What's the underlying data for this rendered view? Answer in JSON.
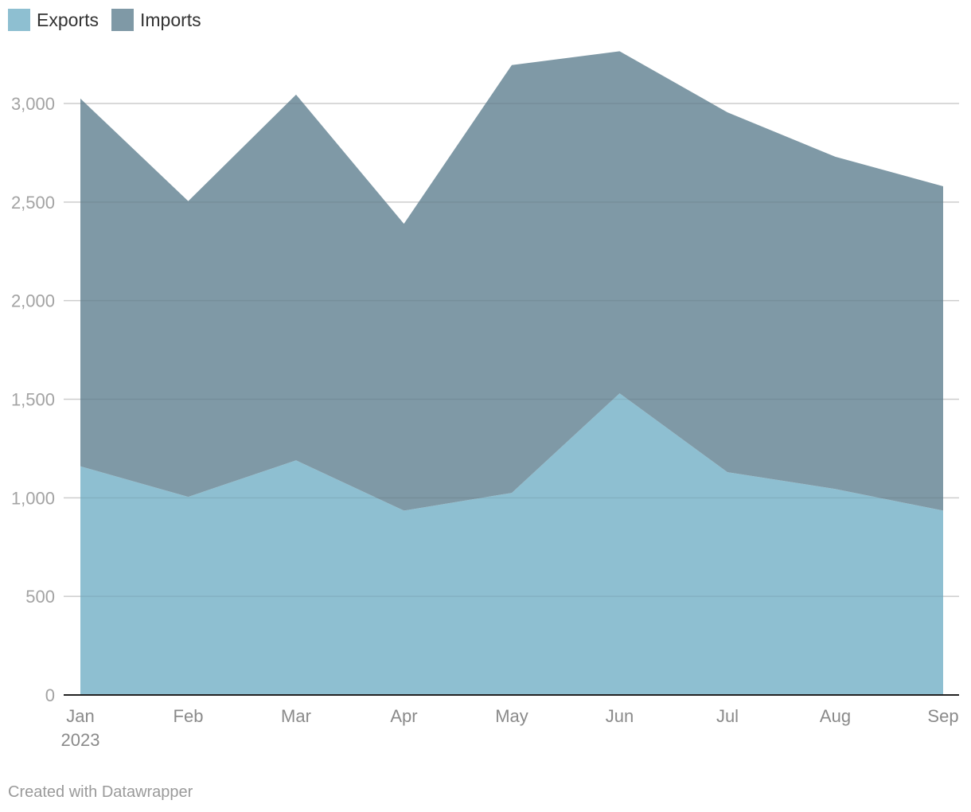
{
  "chart_data": {
    "type": "area",
    "stacked": true,
    "categories": [
      "Jan",
      "Feb",
      "Mar",
      "Apr",
      "May",
      "Jun",
      "Jul",
      "Aug",
      "Sep"
    ],
    "first_category_sublabel": "2023",
    "series": [
      {
        "name": "Exports",
        "color": "#8ebfd1",
        "values": [
          1160,
          1005,
          1190,
          935,
          1025,
          1530,
          1130,
          1045,
          935
        ]
      },
      {
        "name": "Imports",
        "color": "#7f99a6",
        "values": [
          1865,
          1500,
          1855,
          1455,
          2170,
          1735,
          1825,
          1685,
          1645
        ]
      }
    ],
    "y_ticks": [
      0,
      500,
      1000,
      1500,
      2000,
      2500,
      3000
    ],
    "y_tick_labels": [
      "0",
      "500",
      "1,000",
      "1,500",
      "2,000",
      "2,500",
      "3,000"
    ],
    "ylim": [
      0,
      3300
    ],
    "grid": true,
    "legend_position": "top-left"
  },
  "footer": {
    "credit": "Created with Datawrapper"
  }
}
